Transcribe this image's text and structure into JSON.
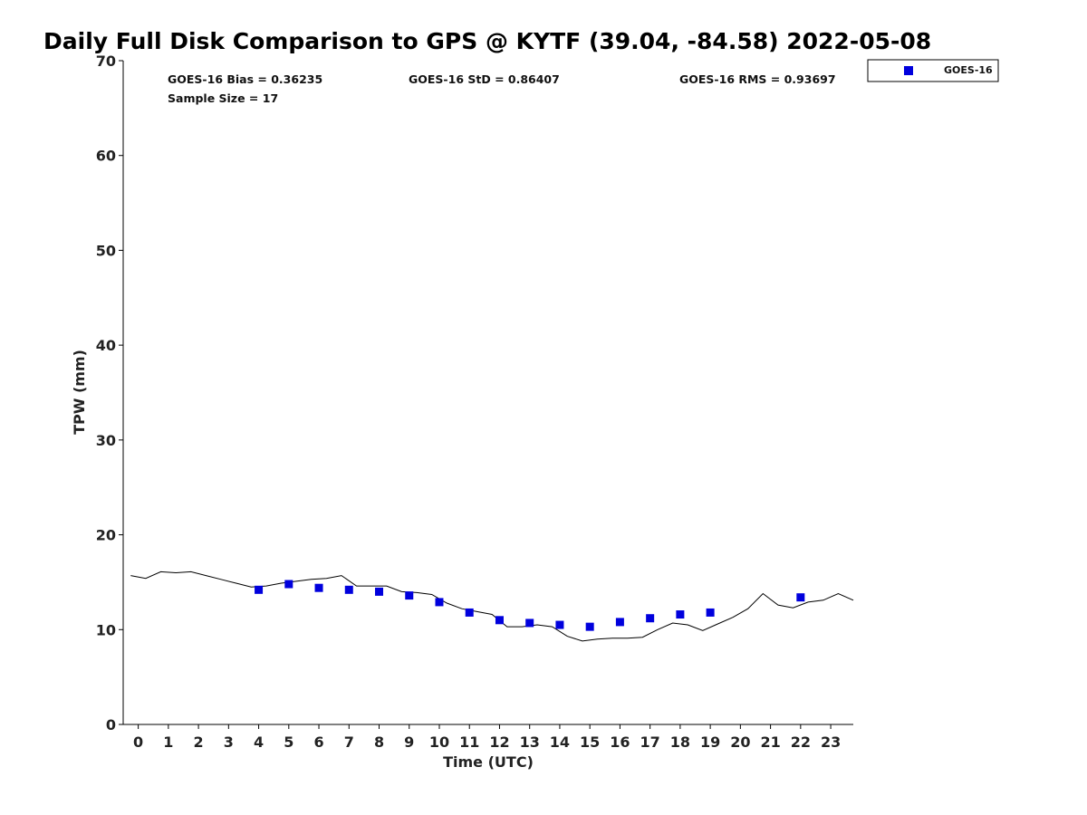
{
  "chart_data": {
    "type": "scatter",
    "title": "Daily Full Disk Comparison to GPS @ KYTF (39.04, -84.58) 2022-05-08",
    "xlabel": "Time (UTC)",
    "ylabel": "TPW (mm)",
    "xlim": [
      -0.5,
      23.75
    ],
    "ylim": [
      0,
      70
    ],
    "x_ticks": [
      0,
      1,
      2,
      3,
      4,
      5,
      6,
      7,
      8,
      9,
      10,
      11,
      12,
      13,
      14,
      15,
      16,
      17,
      18,
      19,
      20,
      21,
      22,
      23
    ],
    "x_tick_labels": [
      "0",
      "1",
      "2",
      "3",
      "4",
      "5",
      "6",
      "7",
      "8",
      "9",
      "10",
      "11",
      "12",
      "13",
      "14",
      "15",
      "16",
      "17",
      "18",
      "19",
      "20",
      "21",
      "22",
      "23"
    ],
    "y_ticks": [
      0,
      10,
      20,
      30,
      40,
      50,
      60,
      70
    ],
    "y_tick_labels": [
      "0",
      "10",
      "20",
      "30",
      "40",
      "50",
      "60",
      "70"
    ],
    "grid": false,
    "legend_position": "top-right outside",
    "stats": [
      "GOES-16 Bias = 0.36235",
      "GOES-16 StD = 0.86407",
      "GOES-16 RMS = 0.93697",
      "Sample Size = 17"
    ],
    "series": [
      {
        "name": "GOES-16",
        "kind": "scatter",
        "marker": "square",
        "color": "#0000dd",
        "x": [
          4,
          5,
          6,
          7,
          8,
          9,
          10,
          11,
          12,
          13,
          14,
          15,
          16,
          17,
          18,
          19,
          22
        ],
        "y": [
          14.2,
          14.8,
          14.4,
          14.2,
          14.0,
          13.6,
          12.9,
          11.8,
          11.0,
          10.7,
          10.5,
          10.3,
          10.8,
          11.2,
          11.6,
          11.8,
          13.4
        ]
      },
      {
        "kind": "line",
        "color": "#000000",
        "x": [
          -0.25,
          0.25,
          0.75,
          1.25,
          1.75,
          2.25,
          2.75,
          3.25,
          3.75,
          4.25,
          4.75,
          5.25,
          5.75,
          6.25,
          6.75,
          7.25,
          7.75,
          8.25,
          8.75,
          9.25,
          9.75,
          10.25,
          10.75,
          11.25,
          11.75,
          12.25,
          12.75,
          13.25,
          13.75,
          14.25,
          14.75,
          15.25,
          15.75,
          16.25,
          16.75,
          17.25,
          17.75,
          18.25,
          18.75,
          19.25,
          19.75,
          20.25,
          20.75,
          21.25,
          21.75,
          22.25,
          22.75,
          23.25,
          23.75
        ],
        "y": [
          15.7,
          15.4,
          16.1,
          16.0,
          16.1,
          15.7,
          15.3,
          14.9,
          14.5,
          14.6,
          14.9,
          15.1,
          15.3,
          15.4,
          15.7,
          14.6,
          14.6,
          14.6,
          14.0,
          13.9,
          13.7,
          12.8,
          12.2,
          11.9,
          11.6,
          10.3,
          10.3,
          10.5,
          10.3,
          9.3,
          8.8,
          9.0,
          9.1,
          9.1,
          9.2,
          10.0,
          10.7,
          10.5,
          9.9,
          10.6,
          11.3,
          12.2,
          13.8,
          12.6,
          12.3,
          12.9,
          13.1,
          13.8,
          13.1
        ]
      }
    ]
  }
}
